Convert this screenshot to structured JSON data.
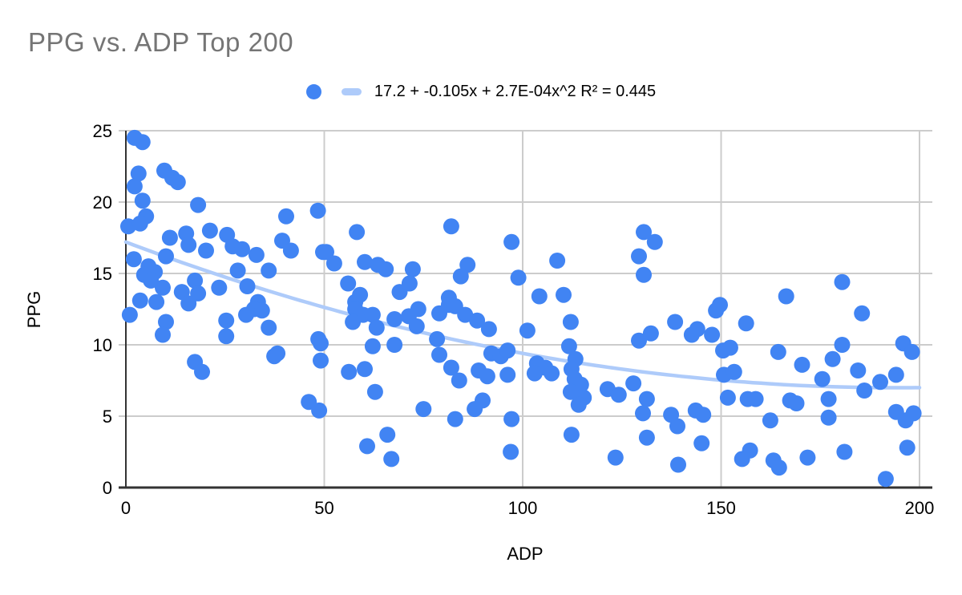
{
  "page": {
    "title": "PPG vs. ADP Top 200"
  },
  "legend": {
    "trend_label": "17.2 + -0.105x + 2.7E-04x^2 R² = 0.445",
    "series_marker": "point-dot-icon",
    "trend_marker": "trendline-dash-icon"
  },
  "colors": {
    "point": "#4184F3",
    "trendline": "#AECBFA",
    "grid": "#CCCCCC",
    "axis": "#333333",
    "title_text": "#757575",
    "tick_text": "#000000"
  },
  "chart_data": {
    "type": "scatter",
    "title": "PPG vs. ADP Top 200",
    "xlabel": "ADP",
    "ylabel": "PPG",
    "xlim": [
      0,
      200
    ],
    "ylim": [
      0,
      25
    ],
    "xticks": [
      0,
      50,
      100,
      150,
      200
    ],
    "yticks": [
      0,
      5,
      10,
      15,
      20,
      25
    ],
    "grid": true,
    "legend_position": "top",
    "trendline": {
      "type": "polynomial",
      "degree": 2,
      "coefficients": [
        17.2,
        -0.105,
        0.00027
      ],
      "equation": "17.2 + -0.105x + 2.7E-04x^2",
      "r2": 0.445
    },
    "points": [
      [
        2.2,
        24.5
      ],
      [
        4.2,
        24.2
      ],
      [
        3.2,
        22.0
      ],
      [
        9.7,
        22.2
      ],
      [
        11.7,
        21.7
      ],
      [
        13.1,
        21.4
      ],
      [
        2.2,
        21.1
      ],
      [
        4.2,
        20.1
      ],
      [
        18.2,
        19.8
      ],
      [
        5.1,
        19.0
      ],
      [
        40.4,
        19.0
      ],
      [
        48.4,
        19.4
      ],
      [
        0.6,
        18.3
      ],
      [
        3.6,
        18.5
      ],
      [
        11.1,
        17.5
      ],
      [
        15.2,
        17.8
      ],
      [
        15.8,
        17.0
      ],
      [
        21.2,
        18.0
      ],
      [
        20.2,
        16.6
      ],
      [
        25.5,
        17.7
      ],
      [
        26.9,
        16.9
      ],
      [
        29.3,
        16.7
      ],
      [
        32.9,
        16.3
      ],
      [
        39.4,
        17.3
      ],
      [
        41.6,
        16.6
      ],
      [
        49.7,
        16.5
      ],
      [
        2.0,
        16.0
      ],
      [
        5.7,
        15.5
      ],
      [
        10.1,
        16.2
      ],
      [
        7.3,
        15.1
      ],
      [
        4.6,
        14.9
      ],
      [
        36.0,
        15.2
      ],
      [
        28.2,
        15.2
      ],
      [
        6.3,
        14.5
      ],
      [
        9.3,
        14.0
      ],
      [
        14.1,
        13.7
      ],
      [
        17.4,
        14.5
      ],
      [
        18.2,
        13.6
      ],
      [
        23.5,
        14.0
      ],
      [
        30.6,
        14.1
      ],
      [
        33.3,
        13.0
      ],
      [
        1.0,
        12.1
      ],
      [
        3.6,
        13.1
      ],
      [
        7.7,
        13.0
      ],
      [
        15.8,
        12.9
      ],
      [
        10.1,
        11.6
      ],
      [
        9.3,
        10.7
      ],
      [
        25.3,
        11.7
      ],
      [
        25.3,
        10.6
      ],
      [
        30.3,
        12.1
      ],
      [
        32.3,
        12.5
      ],
      [
        34.3,
        12.4
      ],
      [
        36.0,
        11.2
      ],
      [
        38.2,
        9.4
      ],
      [
        37.4,
        9.2
      ],
      [
        48.5,
        10.4
      ],
      [
        49.1,
        10.1
      ],
      [
        49.1,
        8.9
      ],
      [
        17.4,
        8.8
      ],
      [
        19.2,
        8.1
      ],
      [
        46.1,
        6.0
      ],
      [
        48.7,
        5.4
      ],
      [
        58.2,
        17.9
      ],
      [
        82.0,
        18.3
      ],
      [
        97.2,
        17.2
      ],
      [
        50.5,
        16.5
      ],
      [
        52.5,
        15.7
      ],
      [
        60.2,
        15.8
      ],
      [
        63.5,
        15.6
      ],
      [
        65.5,
        15.3
      ],
      [
        72.3,
        15.3
      ],
      [
        86.1,
        15.6
      ],
      [
        84.4,
        14.8
      ],
      [
        98.9,
        14.7
      ],
      [
        56.0,
        14.3
      ],
      [
        59.0,
        13.5
      ],
      [
        69.0,
        13.7
      ],
      [
        71.5,
        14.3
      ],
      [
        81.4,
        13.3
      ],
      [
        57.8,
        13.0
      ],
      [
        57.8,
        12.5
      ],
      [
        59.8,
        12.1
      ],
      [
        57.2,
        11.6
      ],
      [
        62.2,
        12.1
      ],
      [
        63.2,
        11.2
      ],
      [
        67.7,
        11.8
      ],
      [
        71.3,
        12.0
      ],
      [
        73.7,
        12.5
      ],
      [
        73.3,
        11.3
      ],
      [
        79.0,
        12.2
      ],
      [
        81.4,
        12.8
      ],
      [
        83.0,
        12.7
      ],
      [
        85.5,
        12.1
      ],
      [
        88.5,
        11.7
      ],
      [
        91.5,
        11.1
      ],
      [
        78.4,
        10.4
      ],
      [
        62.2,
        9.9
      ],
      [
        67.7,
        10.0
      ],
      [
        79.0,
        9.3
      ],
      [
        92.1,
        9.4
      ],
      [
        94.5,
        9.2
      ],
      [
        96.2,
        9.6
      ],
      [
        56.2,
        8.1
      ],
      [
        60.2,
        8.3
      ],
      [
        82.0,
        8.4
      ],
      [
        84.0,
        7.5
      ],
      [
        88.9,
        8.2
      ],
      [
        91.1,
        7.8
      ],
      [
        96.2,
        7.9
      ],
      [
        62.8,
        6.7
      ],
      [
        75.0,
        5.5
      ],
      [
        87.9,
        5.5
      ],
      [
        89.9,
        6.1
      ],
      [
        83.0,
        4.8
      ],
      [
        97.2,
        4.8
      ],
      [
        65.9,
        3.7
      ],
      [
        60.8,
        2.9
      ],
      [
        66.9,
        2.0
      ],
      [
        97.0,
        2.5
      ],
      [
        130.5,
        17.9
      ],
      [
        133.3,
        17.2
      ],
      [
        108.7,
        15.9
      ],
      [
        129.3,
        16.2
      ],
      [
        130.5,
        14.9
      ],
      [
        104.2,
        13.4
      ],
      [
        110.3,
        13.5
      ],
      [
        149.7,
        12.8
      ],
      [
        112.1,
        11.6
      ],
      [
        101.2,
        11.0
      ],
      [
        129.3,
        10.3
      ],
      [
        132.3,
        10.8
      ],
      [
        138.4,
        11.6
      ],
      [
        142.6,
        10.7
      ],
      [
        144.0,
        11.1
      ],
      [
        148.7,
        12.4
      ],
      [
        147.7,
        10.7
      ],
      [
        150.5,
        9.6
      ],
      [
        111.7,
        9.9
      ],
      [
        113.3,
        9.0
      ],
      [
        103.6,
        8.7
      ],
      [
        105.7,
        8.4
      ],
      [
        103.0,
        8.0
      ],
      [
        107.3,
        8.0
      ],
      [
        112.3,
        8.3
      ],
      [
        113.1,
        7.6
      ],
      [
        114.7,
        7.2
      ],
      [
        112.1,
        6.7
      ],
      [
        115.4,
        6.3
      ],
      [
        114.1,
        5.8
      ],
      [
        121.4,
        6.9
      ],
      [
        124.2,
        6.5
      ],
      [
        127.9,
        7.3
      ],
      [
        131.3,
        6.2
      ],
      [
        130.3,
        5.2
      ],
      [
        137.4,
        5.1
      ],
      [
        139.0,
        4.3
      ],
      [
        143.6,
        5.4
      ],
      [
        145.5,
        5.1
      ],
      [
        112.3,
        3.7
      ],
      [
        131.3,
        3.5
      ],
      [
        123.4,
        2.1
      ],
      [
        139.2,
        1.6
      ],
      [
        145.1,
        3.1
      ],
      [
        150.7,
        7.9
      ],
      [
        180.5,
        14.4
      ],
      [
        166.4,
        13.4
      ],
      [
        185.5,
        12.2
      ],
      [
        156.3,
        11.5
      ],
      [
        152.3,
        9.8
      ],
      [
        164.4,
        9.5
      ],
      [
        170.4,
        8.6
      ],
      [
        178.1,
        9.0
      ],
      [
        180.5,
        10.0
      ],
      [
        175.5,
        7.6
      ],
      [
        184.5,
        8.2
      ],
      [
        153.3,
        8.1
      ],
      [
        186.1,
        6.8
      ],
      [
        190.1,
        7.4
      ],
      [
        194.1,
        7.9
      ],
      [
        195.9,
        10.1
      ],
      [
        198.1,
        9.5
      ],
      [
        151.7,
        6.3
      ],
      [
        156.7,
        6.2
      ],
      [
        158.7,
        6.2
      ],
      [
        167.4,
        6.1
      ],
      [
        169.0,
        5.9
      ],
      [
        177.1,
        6.2
      ],
      [
        177.1,
        4.9
      ],
      [
        194.1,
        5.3
      ],
      [
        198.5,
        5.2
      ],
      [
        196.5,
        4.7
      ],
      [
        162.4,
        4.7
      ],
      [
        157.3,
        2.6
      ],
      [
        155.3,
        2.0
      ],
      [
        163.2,
        1.9
      ],
      [
        164.6,
        1.4
      ],
      [
        171.8,
        2.1
      ],
      [
        181.1,
        2.5
      ],
      [
        196.9,
        2.8
      ],
      [
        191.5,
        0.6
      ]
    ]
  }
}
